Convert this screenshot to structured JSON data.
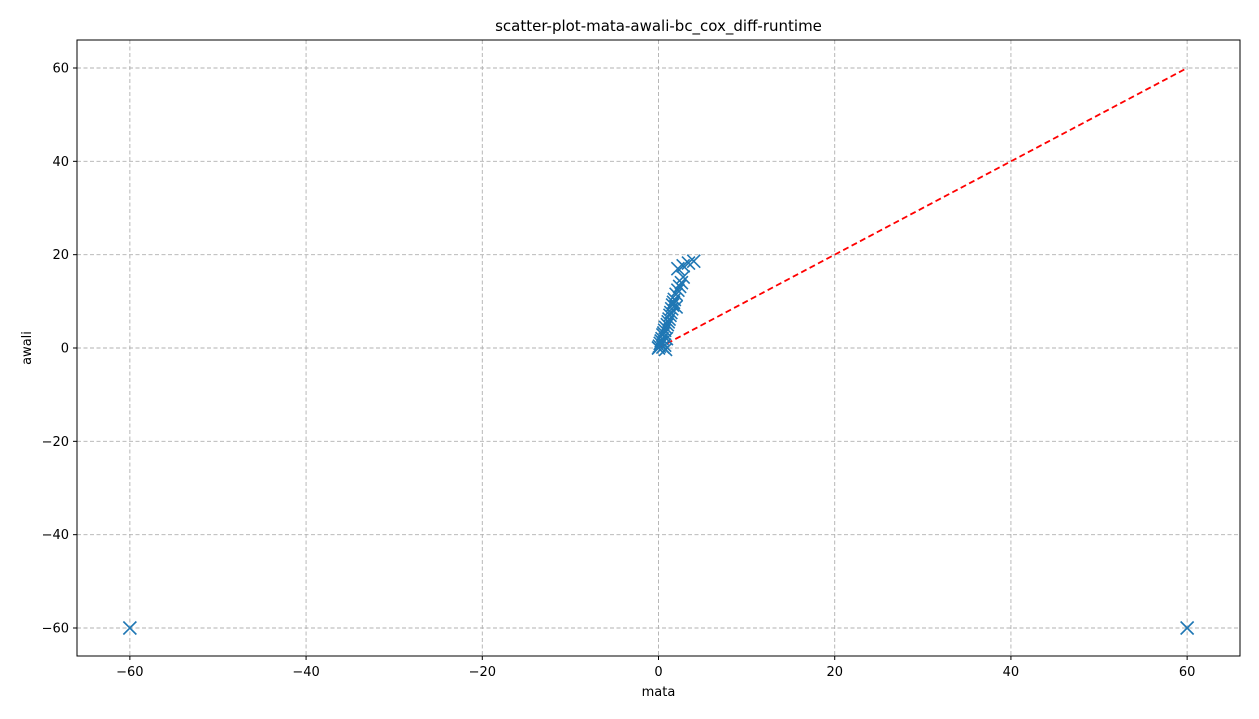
{
  "chart_data": {
    "type": "scatter",
    "title": "scatter-plot-mata-awali-bc_cox_diff-runtime",
    "xlabel": "mata",
    "ylabel": "awali",
    "xlim": [
      -66,
      66
    ],
    "ylim": [
      -66,
      66
    ],
    "xticks": [
      -60,
      -40,
      -20,
      0,
      20,
      40,
      60
    ],
    "yticks": [
      -60,
      -40,
      -20,
      0,
      20,
      40,
      60
    ],
    "xtick_labels": [
      "−60",
      "−40",
      "−20",
      "0",
      "20",
      "40",
      "60"
    ],
    "ytick_labels": [
      "−60",
      "−40",
      "−20",
      "0",
      "20",
      "40",
      "60"
    ],
    "grid": true,
    "marker": "x",
    "color": "#1f77b4",
    "reference_line": {
      "from": [
        0,
        0
      ],
      "to": [
        60,
        60
      ],
      "color": "#ff0000",
      "style": "dashed"
    },
    "series": [
      {
        "points": [
          [
            -60,
            -60
          ],
          [
            60,
            -60
          ],
          [
            0.0,
            0.0
          ],
          [
            0.1,
            0.4
          ],
          [
            0.2,
            1.0
          ],
          [
            0.3,
            1.5
          ],
          [
            0.4,
            2.0
          ],
          [
            0.5,
            0.2
          ],
          [
            0.5,
            2.8
          ],
          [
            0.6,
            3.2
          ],
          [
            0.7,
            0.6
          ],
          [
            0.7,
            3.8
          ],
          [
            0.8,
            -0.3
          ],
          [
            0.8,
            4.4
          ],
          [
            0.9,
            2.0
          ],
          [
            1.0,
            5.0
          ],
          [
            1.1,
            5.6
          ],
          [
            1.2,
            6.2
          ],
          [
            1.3,
            7.0
          ],
          [
            1.4,
            7.6
          ],
          [
            1.5,
            8.4
          ],
          [
            1.6,
            9.2
          ],
          [
            1.7,
            9.8
          ],
          [
            1.8,
            10.4
          ],
          [
            2.0,
            8.8
          ],
          [
            2.0,
            11.5
          ],
          [
            2.2,
            12.4
          ],
          [
            2.4,
            13.2
          ],
          [
            2.6,
            14.0
          ],
          [
            2.8,
            15.2
          ],
          [
            2.2,
            17.0
          ],
          [
            2.8,
            17.6
          ],
          [
            3.4,
            18.2
          ],
          [
            4.0,
            18.6
          ]
        ]
      }
    ]
  }
}
